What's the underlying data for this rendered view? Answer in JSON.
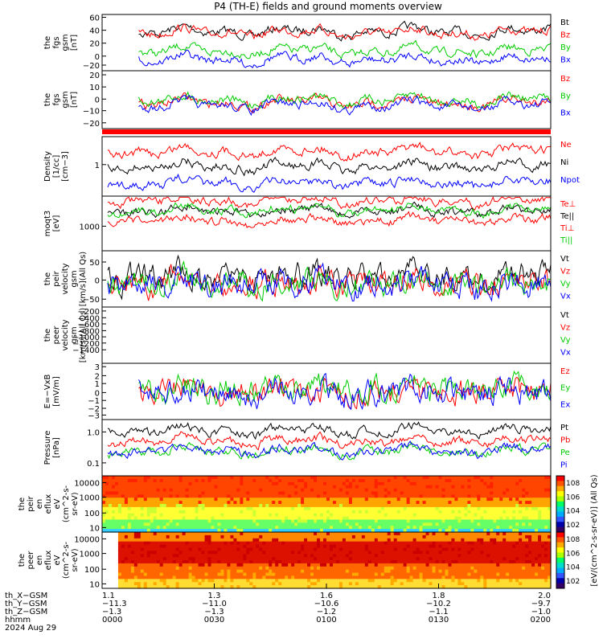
{
  "title": "P4 (TH-E) fields and ground moments overview",
  "chart_data": {
    "type": "line",
    "panels": [
      {
        "id": "fgs_gsm_btot",
        "ylabel": [
          "the",
          "fgs",
          "gsm",
          "[nT]"
        ],
        "yticks": [
          "60",
          "40",
          "20",
          "0",
          "−20"
        ],
        "ylim": [
          -25,
          62
        ],
        "legend": [
          {
            "name": "Bt",
            "color": "#000000"
          },
          {
            "name": "Bz",
            "color": "#ff0000"
          },
          {
            "name": "By",
            "color": "#00cc00"
          },
          {
            "name": "Bx",
            "color": "#0000ff"
          }
        ]
      },
      {
        "id": "fgs_gsm",
        "ylabel": [
          "the",
          "fgs",
          "gsm",
          "[nT]"
        ],
        "yticks": [
          "20",
          "10",
          "0",
          "−10",
          "−20"
        ],
        "ylim": [
          -25,
          22
        ],
        "legend": [
          {
            "name": "Bz",
            "color": "#ff0000"
          },
          {
            "name": "By",
            "color": "#00cc00"
          },
          {
            "name": "Bx",
            "color": "#0000ff"
          }
        ]
      },
      {
        "id": "density",
        "ylabel": [
          "Density",
          "[1/cc]",
          "[cm−3]"
        ],
        "yticks": [
          "1"
        ],
        "legend": [
          {
            "name": "Ne",
            "color": "#ff0000"
          },
          {
            "name": "Ni",
            "color": "#000000"
          },
          {
            "name": "Npot",
            "color": "#0000ff"
          }
        ]
      },
      {
        "id": "temperature",
        "ylabel": [
          "moqt3",
          "[eV]"
        ],
        "yticks": [
          "1000"
        ],
        "legend": [
          {
            "name": "Te⊥",
            "color": "#ff0000"
          },
          {
            "name": "Te||",
            "color": "#000000"
          },
          {
            "name": "Ti⊥",
            "color": "#ff0000"
          },
          {
            "name": "Ti||",
            "color": "#00cc00"
          }
        ]
      },
      {
        "id": "peir_velocity",
        "ylabel": [
          "the",
          "peir",
          "velocity",
          "gsm",
          "[km/s](All Qs)"
        ],
        "yticks": [
          "50",
          "0",
          "−50"
        ],
        "ylim": [
          -60,
          75
        ],
        "legend": [
          {
            "name": "Vt",
            "color": "#000000"
          },
          {
            "name": "Vz",
            "color": "#ff0000"
          },
          {
            "name": "Vy",
            "color": "#00cc00"
          },
          {
            "name": "Vx",
            "color": "#0000ff"
          }
        ]
      },
      {
        "id": "peer_velocity",
        "ylabel": [
          "the",
          "peer",
          "velocity",
          "gsm",
          "[km/s](All Qs)"
        ],
        "yticks": [
          "−200",
          "−400",
          "−600",
          "−800",
          "−1000",
          "−1200",
          "−1400"
        ],
        "ylim": [
          -1450,
          0
        ],
        "legend": [
          {
            "name": "Vt",
            "color": "#000000"
          },
          {
            "name": "Vz",
            "color": "#ff0000"
          },
          {
            "name": "Vy",
            "color": "#00cc00"
          },
          {
            "name": "Vx",
            "color": "#0000ff"
          }
        ]
      },
      {
        "id": "efield",
        "ylabel": [
          "E=−VxB",
          "[mV/m]"
        ],
        "yticks": [
          "3",
          "2",
          "1",
          "0",
          "−1",
          "−2",
          "−3"
        ],
        "ylim": [
          -3.2,
          3.4
        ],
        "legend": [
          {
            "name": "Ez",
            "color": "#ff0000"
          },
          {
            "name": "Ey",
            "color": "#00cc00"
          },
          {
            "name": "Ex",
            "color": "#0000ff"
          }
        ]
      },
      {
        "id": "pressure",
        "ylabel": [
          "Pressure",
          "[nPa]"
        ],
        "yticks": [
          "1.0",
          "0.1"
        ],
        "ylog": true,
        "legend": [
          {
            "name": "Pt",
            "color": "#000000"
          },
          {
            "name": "Pb",
            "color": "#ff0000"
          },
          {
            "name": "Pe",
            "color": "#00cc00"
          },
          {
            "name": "Pi",
            "color": "#0000ff"
          }
        ]
      },
      {
        "id": "peir_eflux",
        "ylabel": [
          "the",
          "peir",
          "en",
          "eflux",
          "eV",
          "(cm^2-s-",
          "sr-eV)"
        ],
        "yticks": [
          "10000",
          "1000",
          "100",
          "10"
        ],
        "type": "spectrogram"
      },
      {
        "id": "peer_eflux",
        "ylabel": [
          "the",
          "peer",
          "en",
          "eflux",
          "eV",
          "(cm^2-s-",
          "sr-eV)"
        ],
        "yticks": [
          "10000",
          "1000",
          "100",
          "10"
        ],
        "type": "spectrogram"
      }
    ],
    "colorbar": {
      "label": "[eV/(cm^2-s-sr-eV)] (All Qs)",
      "ticks_upper": [
        "10^8",
        "10^6",
        "10^4",
        "10^2"
      ],
      "ticks_lower": [
        "10^8",
        "10^6",
        "10^4",
        "10^2"
      ]
    },
    "x_axis": {
      "row_labels": [
        "th_X−GSM",
        "th_Y−GSM",
        "th_Z−GSM",
        "hhmm",
        "2024 Aug 29"
      ],
      "ticks": [
        {
          "x": "0000",
          "X": "1.1",
          "Y": "−11.3",
          "Z": "−1.3"
        },
        {
          "x": "0030",
          "X": "1.3",
          "Y": "−11.0",
          "Z": "−1.3"
        },
        {
          "x": "0100",
          "X": "1.6",
          "Y": "−10.6",
          "Z": "−1.2"
        },
        {
          "x": "0130",
          "X": "1.8",
          "Y": "−10.2",
          "Z": "−1.1"
        },
        {
          "x": "0200",
          "X": "2.0",
          "Y": "−9.7",
          "Z": "−1.0"
        }
      ]
    }
  }
}
